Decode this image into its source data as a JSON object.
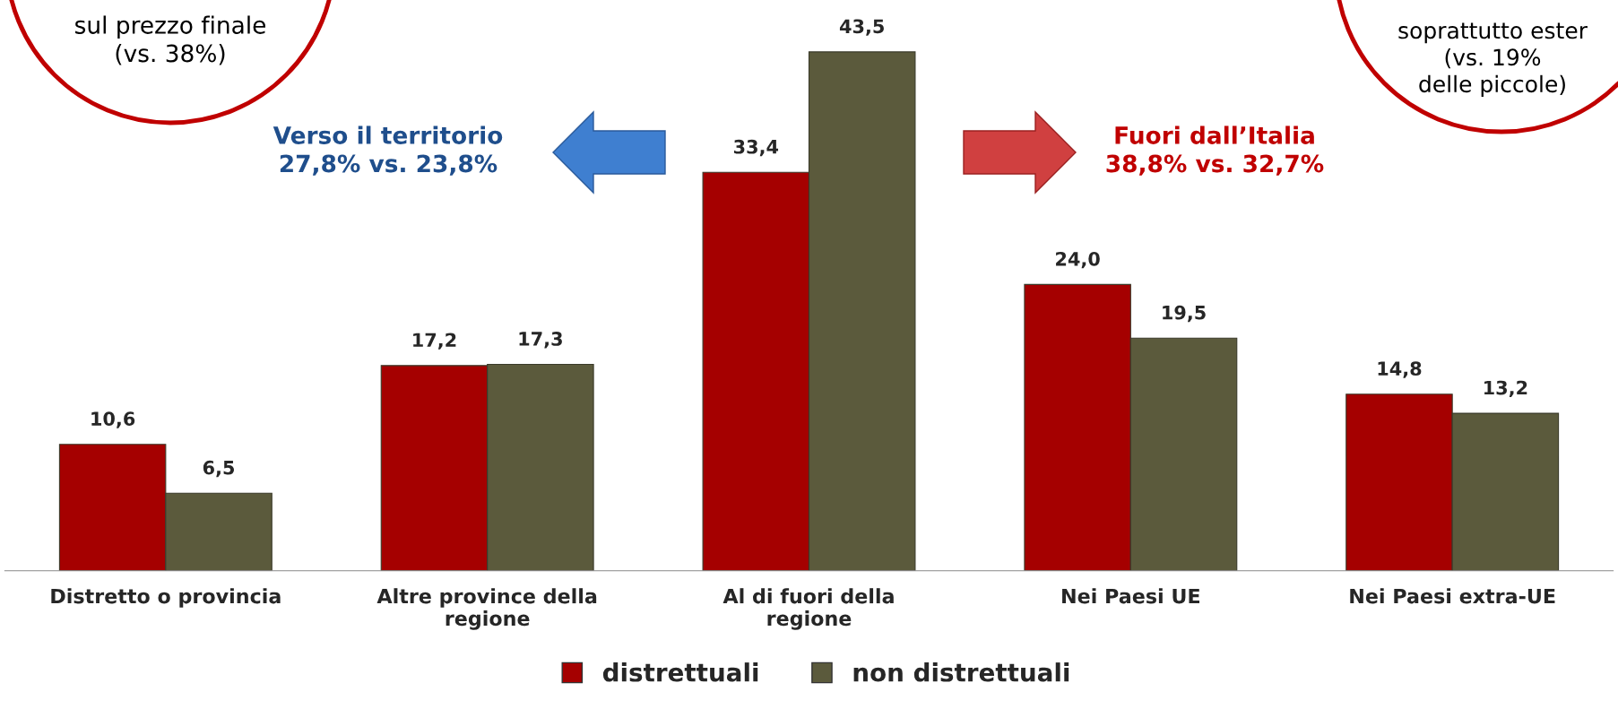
{
  "chart_data": {
    "type": "bar",
    "categories": [
      "Distretto o provincia",
      "Altre province della regione",
      "Al di fuori della regione",
      "Nei Paesi UE",
      "Nei Paesi extra-UE"
    ],
    "series": [
      {
        "name": "distrettuali",
        "color": "#a50000",
        "values": [
          10.6,
          17.2,
          33.4,
          24.0,
          14.8
        ],
        "value_labels": [
          "10,6",
          "17,2",
          "33,4",
          "24,0",
          "14,8"
        ]
      },
      {
        "name": "non distrettuali",
        "color": "#5b5a3c",
        "values": [
          6.5,
          17.3,
          43.5,
          19.5,
          13.2
        ],
        "value_labels": [
          "6,5",
          "17,3",
          "43,5",
          "19,5",
          "13,2"
        ]
      }
    ],
    "annotations": [
      "sul prezzo finale\n(vs. 38%)",
      "soprattutto ester\n(vs. 19%\ndelle piccole)",
      "Verso il territorio\n27,8% vs. 23,8%",
      "Fuori dall’Italia\n38,8% vs. 32,7%"
    ],
    "legend": "bottom",
    "grid": false
  }
}
